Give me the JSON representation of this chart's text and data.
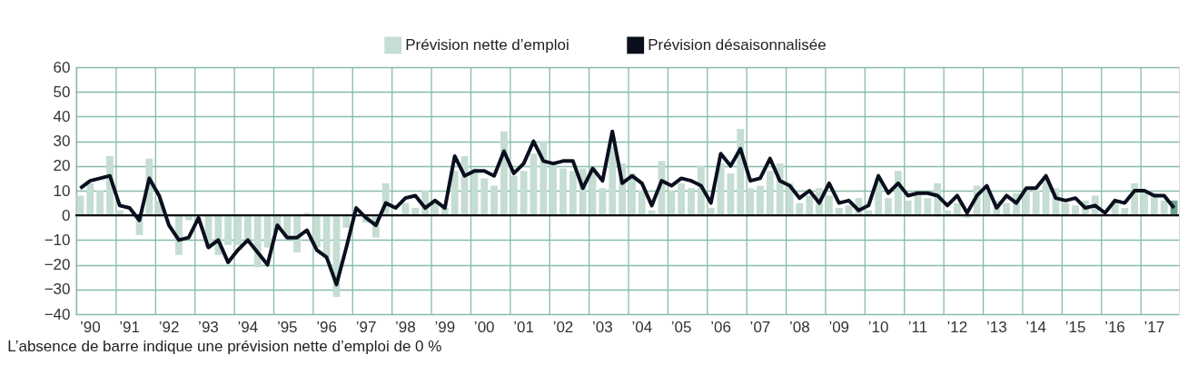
{
  "chart_data": {
    "type": "bar",
    "categories": [
      null,
      "’90",
      null,
      null,
      null,
      "’91",
      null,
      null,
      null,
      "’92",
      null,
      null,
      null,
      "’93",
      null,
      null,
      null,
      "’94",
      null,
      null,
      null,
      "’95",
      null,
      null,
      null,
      "’96",
      null,
      null,
      null,
      "’97",
      null,
      null,
      null,
      "’98",
      null,
      null,
      null,
      "’99",
      null,
      null,
      null,
      "’00",
      null,
      null,
      null,
      "’01",
      null,
      null,
      null,
      "’02",
      null,
      null,
      null,
      "’03",
      null,
      null,
      null,
      "’04",
      null,
      null,
      null,
      "’05",
      null,
      null,
      null,
      "’06",
      null,
      null,
      null,
      "’07",
      null,
      null,
      null,
      "’08",
      null,
      null,
      null,
      "’09",
      null,
      null,
      null,
      "’10",
      null,
      null,
      null,
      "’11",
      null,
      null,
      null,
      "’12",
      null,
      null,
      null,
      "’13",
      null,
      null,
      null,
      "’14",
      null,
      null,
      null,
      "’15",
      null,
      null,
      null,
      "’16",
      null,
      null,
      null,
      "’17",
      null,
      null
    ],
    "series": [
      {
        "name": "Prévision nette d’emploi",
        "color": "#c5ddd3",
        "colors": [
          "#c5ddd3",
          "#c5ddd3",
          "#c5ddd3",
          "#c5ddd3",
          "#c5ddd3",
          "#c5ddd3",
          "#c5ddd3",
          "#c5ddd3",
          "#c5ddd3",
          "#c5ddd3",
          "#c5ddd3",
          "#c5ddd3",
          "#c5ddd3",
          "#c5ddd3",
          "#c5ddd3",
          "#c5ddd3",
          "#c5ddd3",
          "#c5ddd3",
          "#c5ddd3",
          "#c5ddd3",
          "#c5ddd3",
          "#c5ddd3",
          "#c5ddd3",
          "#c5ddd3",
          "#c5ddd3",
          "#c5ddd3",
          "#c5ddd3",
          "#c5ddd3",
          "#c5ddd3",
          "#c5ddd3",
          "#c5ddd3",
          "#c5ddd3",
          "#c5ddd3",
          "#c5ddd3",
          "#c5ddd3",
          "#c5ddd3",
          "#c5ddd3",
          "#c5ddd3",
          "#c5ddd3",
          "#c5ddd3",
          "#c5ddd3",
          "#c5ddd3",
          "#c5ddd3",
          "#c5ddd3",
          "#c5ddd3",
          "#c5ddd3",
          "#c5ddd3",
          "#c5ddd3",
          "#c5ddd3",
          "#c5ddd3",
          "#c5ddd3",
          "#c5ddd3",
          "#c5ddd3",
          "#c5ddd3",
          "#c5ddd3",
          "#c5ddd3",
          "#c5ddd3",
          "#c5ddd3",
          "#c5ddd3",
          "#c5ddd3",
          "#c5ddd3",
          "#c5ddd3",
          "#c5ddd3",
          "#c5ddd3",
          "#c5ddd3",
          "#c5ddd3",
          "#c5ddd3",
          "#c5ddd3",
          "#c5ddd3",
          "#c5ddd3",
          "#c5ddd3",
          "#c5ddd3",
          "#c5ddd3",
          "#c5ddd3",
          "#c5ddd3",
          "#c5ddd3",
          "#c5ddd3",
          "#c5ddd3",
          "#c5ddd3",
          "#c5ddd3",
          "#c5ddd3",
          "#c5ddd3",
          "#c5ddd3",
          "#c5ddd3",
          "#c5ddd3",
          "#c5ddd3",
          "#c5ddd3",
          "#c5ddd3",
          "#c5ddd3",
          "#c5ddd3",
          "#c5ddd3",
          "#c5ddd3",
          "#c5ddd3",
          "#c5ddd3",
          "#c5ddd3",
          "#c5ddd3",
          "#c5ddd3",
          "#c5ddd3",
          "#c5ddd3",
          "#c5ddd3",
          "#c5ddd3",
          "#c5ddd3",
          "#c5ddd3",
          "#c5ddd3",
          "#c5ddd3",
          "#c5ddd3",
          "#c5ddd3",
          "#c5ddd3",
          "#c5ddd3",
          "#c5ddd3",
          "#c5ddd3",
          "#6aa58c"
        ],
        "values": [
          8,
          13,
          10,
          24,
          2,
          null,
          -8,
          23,
          6,
          null,
          -16,
          -2,
          null,
          -13,
          -16,
          -12,
          -12,
          -10,
          -21,
          -13,
          -5,
          -9,
          -15,
          1,
          -13,
          -17,
          -33,
          -5,
          0,
          -3,
          -9,
          13,
          null,
          5,
          3,
          10,
          5,
          3,
          18,
          24,
          19,
          15,
          12,
          34,
          16,
          18,
          25,
          30,
          21,
          19,
          18,
          19,
          19,
          11,
          28,
          21,
          17,
          10,
          2,
          22,
          10,
          13,
          11,
          20,
          3,
          21,
          17,
          35,
          11,
          12,
          18,
          21,
          13,
          5,
          8,
          11,
          8,
          3,
          4,
          7,
          2,
          15,
          7,
          18,
          6,
          9,
          7,
          13,
          2,
          5,
          -1,
          12,
          10,
          6,
          5,
          9,
          10,
          10,
          15,
          11,
          5,
          4,
          6,
          8,
          0,
          6,
          3,
          13,
          10,
          9,
          6,
          6
        ]
      },
      {
        "name": "Prévision désaisonnalisée",
        "type": "line",
        "color": "#0a0f1e",
        "values": [
          11,
          14,
          15,
          16,
          4,
          3,
          -2,
          15,
          8,
          -4,
          -10,
          -9,
          -1,
          -13,
          -10,
          -19,
          -14,
          -10,
          -15,
          -20,
          -4,
          -9,
          -9,
          -6,
          -14,
          -17,
          -28,
          -13,
          3,
          -1,
          -4,
          5,
          3,
          7,
          8,
          3,
          6,
          3,
          24,
          16,
          18,
          18,
          16,
          26,
          17,
          21,
          30,
          22,
          21,
          22,
          22,
          11,
          19,
          14,
          34,
          13,
          16,
          13,
          4,
          14,
          12,
          15,
          14,
          12,
          5,
          25,
          20,
          27,
          14,
          15,
          23,
          14,
          12,
          7,
          10,
          5,
          13,
          5,
          6,
          2,
          4,
          16,
          9,
          13,
          8,
          9,
          9,
          8,
          4,
          8,
          1,
          8,
          12,
          3,
          8,
          5,
          11,
          11,
          16,
          7,
          6,
          7,
          3,
          4,
          1,
          6,
          5,
          10,
          10,
          8,
          8,
          3
        ]
      }
    ],
    "ylim": [
      -40,
      60
    ],
    "yticks": [
      -40,
      -30,
      -20,
      -10,
      0,
      10,
      20,
      30,
      40,
      50,
      60
    ],
    "ref_lines": [
      {
        "axis": "y",
        "value": 0,
        "color": "#111111"
      }
    ],
    "grid": true,
    "legend": "top",
    "marker": "none",
    "line_style": "solid",
    "annotations": [
      "L’absence de barre indique une prévision nette d’emploi de 0 %"
    ]
  }
}
